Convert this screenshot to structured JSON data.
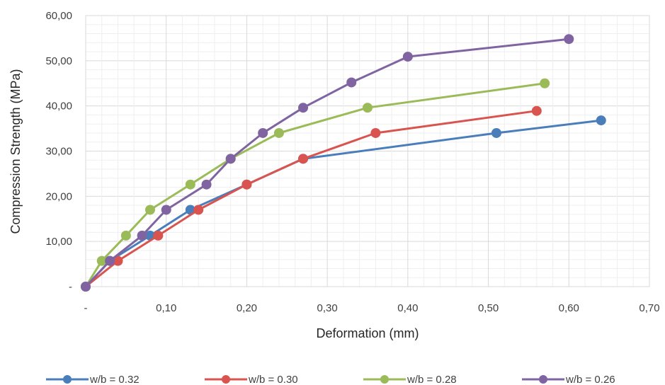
{
  "chart_data": {
    "type": "line",
    "title": "",
    "xlabel": "Deformation (mm)",
    "ylabel": "Compression Strength  (MPa)",
    "xlim": [
      0,
      0.7
    ],
    "ylim": [
      0,
      60
    ],
    "x_ticks": [
      0,
      0.1,
      0.2,
      0.3,
      0.4,
      0.5,
      0.6,
      0.7
    ],
    "x_tick_labels": [
      "-",
      "0,10",
      "0,20",
      "0,30",
      "0,40",
      "0,50",
      "0,60",
      "0,70"
    ],
    "y_ticks": [
      0,
      10,
      20,
      30,
      40,
      50,
      60
    ],
    "y_tick_labels": [
      "-",
      "10,00",
      "20,00",
      "30,00",
      "40,00",
      "50,00",
      "60,00"
    ],
    "grid": true,
    "legend_position": "bottom",
    "series": [
      {
        "name": "w/b = 0.32",
        "color": "#4a7ebb",
        "x": [
          0,
          0.03,
          0.08,
          0.13,
          0.2,
          0.27,
          0.51,
          0.64
        ],
        "y": [
          0,
          5.7,
          11.3,
          17.0,
          22.6,
          28.3,
          34.0,
          36.8
        ]
      },
      {
        "name": "w/b = 0.30",
        "color": "#d9534f",
        "x": [
          0,
          0.04,
          0.09,
          0.14,
          0.2,
          0.27,
          0.36,
          0.56
        ],
        "y": [
          0,
          5.7,
          11.3,
          17.0,
          22.6,
          28.3,
          34.0,
          38.9
        ]
      },
      {
        "name": "w/b = 0.28",
        "color": "#9bbb59",
        "x": [
          0,
          0.02,
          0.05,
          0.08,
          0.13,
          0.18,
          0.24,
          0.35,
          0.57
        ],
        "y": [
          0,
          5.7,
          11.3,
          17.0,
          22.6,
          28.3,
          34.0,
          39.6,
          45.0
        ]
      },
      {
        "name": "w/b = 0.26",
        "color": "#8064a2",
        "x": [
          0,
          0.03,
          0.07,
          0.1,
          0.15,
          0.18,
          0.22,
          0.27,
          0.33,
          0.4,
          0.6
        ],
        "y": [
          0,
          5.7,
          11.3,
          17.0,
          22.6,
          28.3,
          34.0,
          39.6,
          45.2,
          50.9,
          54.8
        ]
      }
    ]
  }
}
